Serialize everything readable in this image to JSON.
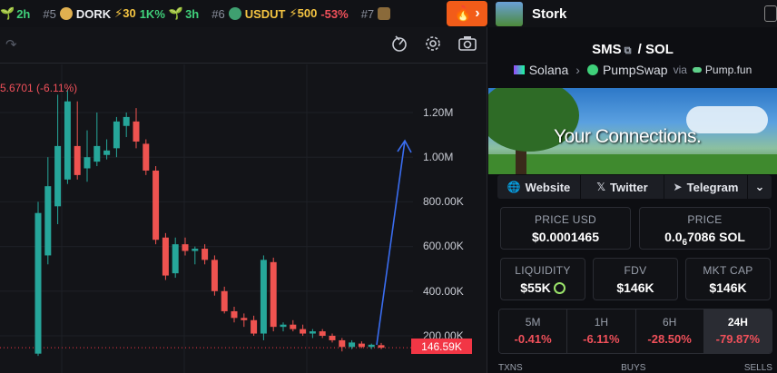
{
  "ticker": [
    {
      "rank": "",
      "sym": "",
      "change": "2h",
      "boost": "",
      "pct": "",
      "color": "#3fd07a"
    },
    {
      "rank": "#5",
      "sym": "DORK",
      "boost": "⚡30",
      "change": "1K%",
      "age": "3h",
      "color": "#e0b050"
    },
    {
      "rank": "#6",
      "sym": "USDUT",
      "boost": "⚡500",
      "pct": "-53%",
      "color": "#3fa070"
    },
    {
      "rank": "#7",
      "sym": "",
      "color": "#8a6a3a"
    }
  ],
  "chart": {
    "ohlc_label": "5.6701 (-6.11%)",
    "current_price": "146.59K",
    "y_labels": [
      "1.20M",
      "1.00M",
      "800.00K",
      "600.00K",
      "400.00K",
      "200.00K"
    ]
  },
  "chart_data": {
    "type": "candlestick",
    "ylim": [
      100000,
      1350000
    ],
    "candles": [
      {
        "o": 120000,
        "h": 800000,
        "l": 110000,
        "c": 750000
      },
      {
        "o": 560000,
        "h": 1000000,
        "l": 520000,
        "c": 870000
      },
      {
        "o": 780000,
        "h": 1280000,
        "l": 700000,
        "c": 1050000
      },
      {
        "o": 900000,
        "h": 1300000,
        "l": 880000,
        "c": 1250000
      },
      {
        "o": 1050000,
        "h": 1250000,
        "l": 900000,
        "c": 920000
      },
      {
        "o": 950000,
        "h": 1120000,
        "l": 890000,
        "c": 1000000
      },
      {
        "o": 980000,
        "h": 1200000,
        "l": 960000,
        "c": 1050000
      },
      {
        "o": 1010000,
        "h": 1080000,
        "l": 990000,
        "c": 1030000
      },
      {
        "o": 1040000,
        "h": 1180000,
        "l": 1000000,
        "c": 1160000
      },
      {
        "o": 1140000,
        "h": 1200000,
        "l": 1090000,
        "c": 1180000
      },
      {
        "o": 1160000,
        "h": 1220000,
        "l": 1040000,
        "c": 1070000
      },
      {
        "o": 1060000,
        "h": 1080000,
        "l": 920000,
        "c": 940000
      },
      {
        "o": 940000,
        "h": 960000,
        "l": 610000,
        "c": 630000
      },
      {
        "o": 640000,
        "h": 660000,
        "l": 450000,
        "c": 470000
      },
      {
        "o": 480000,
        "h": 640000,
        "l": 460000,
        "c": 610000
      },
      {
        "o": 610000,
        "h": 640000,
        "l": 560000,
        "c": 580000
      },
      {
        "o": 580000,
        "h": 600000,
        "l": 520000,
        "c": 590000
      },
      {
        "o": 590000,
        "h": 610000,
        "l": 520000,
        "c": 540000
      },
      {
        "o": 540000,
        "h": 560000,
        "l": 380000,
        "c": 400000
      },
      {
        "o": 400000,
        "h": 420000,
        "l": 300000,
        "c": 310000
      },
      {
        "o": 310000,
        "h": 330000,
        "l": 260000,
        "c": 280000
      },
      {
        "o": 280000,
        "h": 300000,
        "l": 240000,
        "c": 270000
      },
      {
        "o": 270000,
        "h": 290000,
        "l": 200000,
        "c": 210000
      },
      {
        "o": 210000,
        "h": 560000,
        "l": 180000,
        "c": 540000
      },
      {
        "o": 530000,
        "h": 550000,
        "l": 220000,
        "c": 240000
      },
      {
        "o": 240000,
        "h": 260000,
        "l": 220000,
        "c": 250000
      },
      {
        "o": 250000,
        "h": 270000,
        "l": 220000,
        "c": 230000
      },
      {
        "o": 230000,
        "h": 250000,
        "l": 200000,
        "c": 210000
      },
      {
        "o": 210000,
        "h": 230000,
        "l": 190000,
        "c": 220000
      },
      {
        "o": 220000,
        "h": 230000,
        "l": 190000,
        "c": 200000
      },
      {
        "o": 200000,
        "h": 210000,
        "l": 170000,
        "c": 180000
      },
      {
        "o": 180000,
        "h": 190000,
        "l": 130000,
        "c": 150000
      },
      {
        "o": 150000,
        "h": 180000,
        "l": 140000,
        "c": 170000
      },
      {
        "o": 165000,
        "h": 175000,
        "l": 145000,
        "c": 150000
      },
      {
        "o": 150000,
        "h": 165000,
        "l": 140000,
        "c": 160000
      },
      {
        "o": 158000,
        "h": 168000,
        "l": 140000,
        "c": 146590
      }
    ]
  },
  "panel": {
    "name": "Stork",
    "pair_base": "SMS",
    "pair_sep": "/",
    "pair_quote": "SOL",
    "chain": "Solana",
    "dex": "PumpSwap",
    "via": "via",
    "launchpad": "Pump.fun",
    "banner_text": "Your Connections.",
    "links": {
      "website": "Website",
      "twitter": "Twitter",
      "telegram": "Telegram"
    },
    "price_usd_label": "PRICE USD",
    "price_usd": "$0.0001465",
    "price_label": "PRICE",
    "price_sol_a": "0.0",
    "price_sol_sub": "6",
    "price_sol_b": "7086 SOL",
    "liq_label": "LIQUIDITY",
    "liq": "$55K",
    "fdv_label": "FDV",
    "fdv": "$146K",
    "mcap_label": "MKT CAP",
    "mcap": "$146K",
    "timeframes": [
      {
        "t": "5M",
        "p": "-0.41%"
      },
      {
        "t": "1H",
        "p": "-6.11%"
      },
      {
        "t": "6H",
        "p": "-28.50%"
      },
      {
        "t": "24H",
        "p": "-79.87%"
      }
    ],
    "stats_headers": [
      "TXNS",
      "BUYS",
      "SELLS"
    ]
  },
  "colors": {
    "up": "#26a69a",
    "down": "#ef5350",
    "accent": "#f25c19",
    "arrow": "#3a6df0"
  }
}
